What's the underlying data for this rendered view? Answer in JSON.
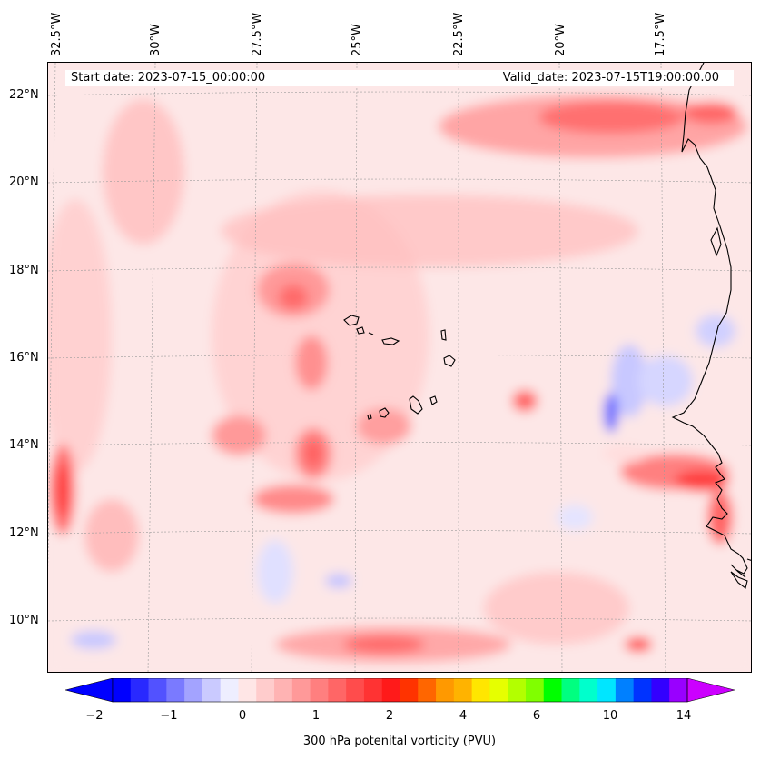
{
  "header": {
    "start_date": "Start date: 2023-07-15_00:00:00",
    "valid_date": "Valid_date: 2023-07-15T19:00:00.00"
  },
  "map": {
    "longitude_labels": [
      "32.5°W",
      "30°W",
      "27.5°W",
      "25°W",
      "22.5°W",
      "20°W",
      "17.5°W"
    ],
    "latitude_labels": [
      "22°N",
      "20°N",
      "18°N",
      "16°N",
      "14°N",
      "12°N",
      "10°N"
    ],
    "extent": {
      "lon_min": -32.6,
      "lon_max": -15.5,
      "lat_min": 8.9,
      "lat_max": 22.8
    },
    "background_color": "#fde7e7",
    "coastline_color": "#000000",
    "gridlines": true
  },
  "colorbar": {
    "label": "300 hPa potenital vorticity (PVU)",
    "tick_labels": [
      "−2",
      "−1",
      "0",
      "1",
      "2",
      "4",
      "6",
      "10",
      "14"
    ],
    "colors": [
      "#0000ff",
      "#2929ff",
      "#5252ff",
      "#7a7aff",
      "#a3a3ff",
      "#cacaff",
      "#eeeeff",
      "#ffe6e6",
      "#ffcccc",
      "#ffb3b3",
      "#ff9999",
      "#ff7f7f",
      "#ff6666",
      "#ff4c4c",
      "#ff3333",
      "#ff1a1a",
      "#ff3300",
      "#ff6600",
      "#ff9900",
      "#ffb300",
      "#ffe600",
      "#e6ff00",
      "#b3ff00",
      "#80ff00",
      "#00ff00",
      "#00ff80",
      "#00ffcc",
      "#00e6ff",
      "#0080ff",
      "#0033ff",
      "#3300ff",
      "#9900ff"
    ],
    "extend_low_color": "#0000ff",
    "extend_high_color": "#cc00ff"
  }
}
